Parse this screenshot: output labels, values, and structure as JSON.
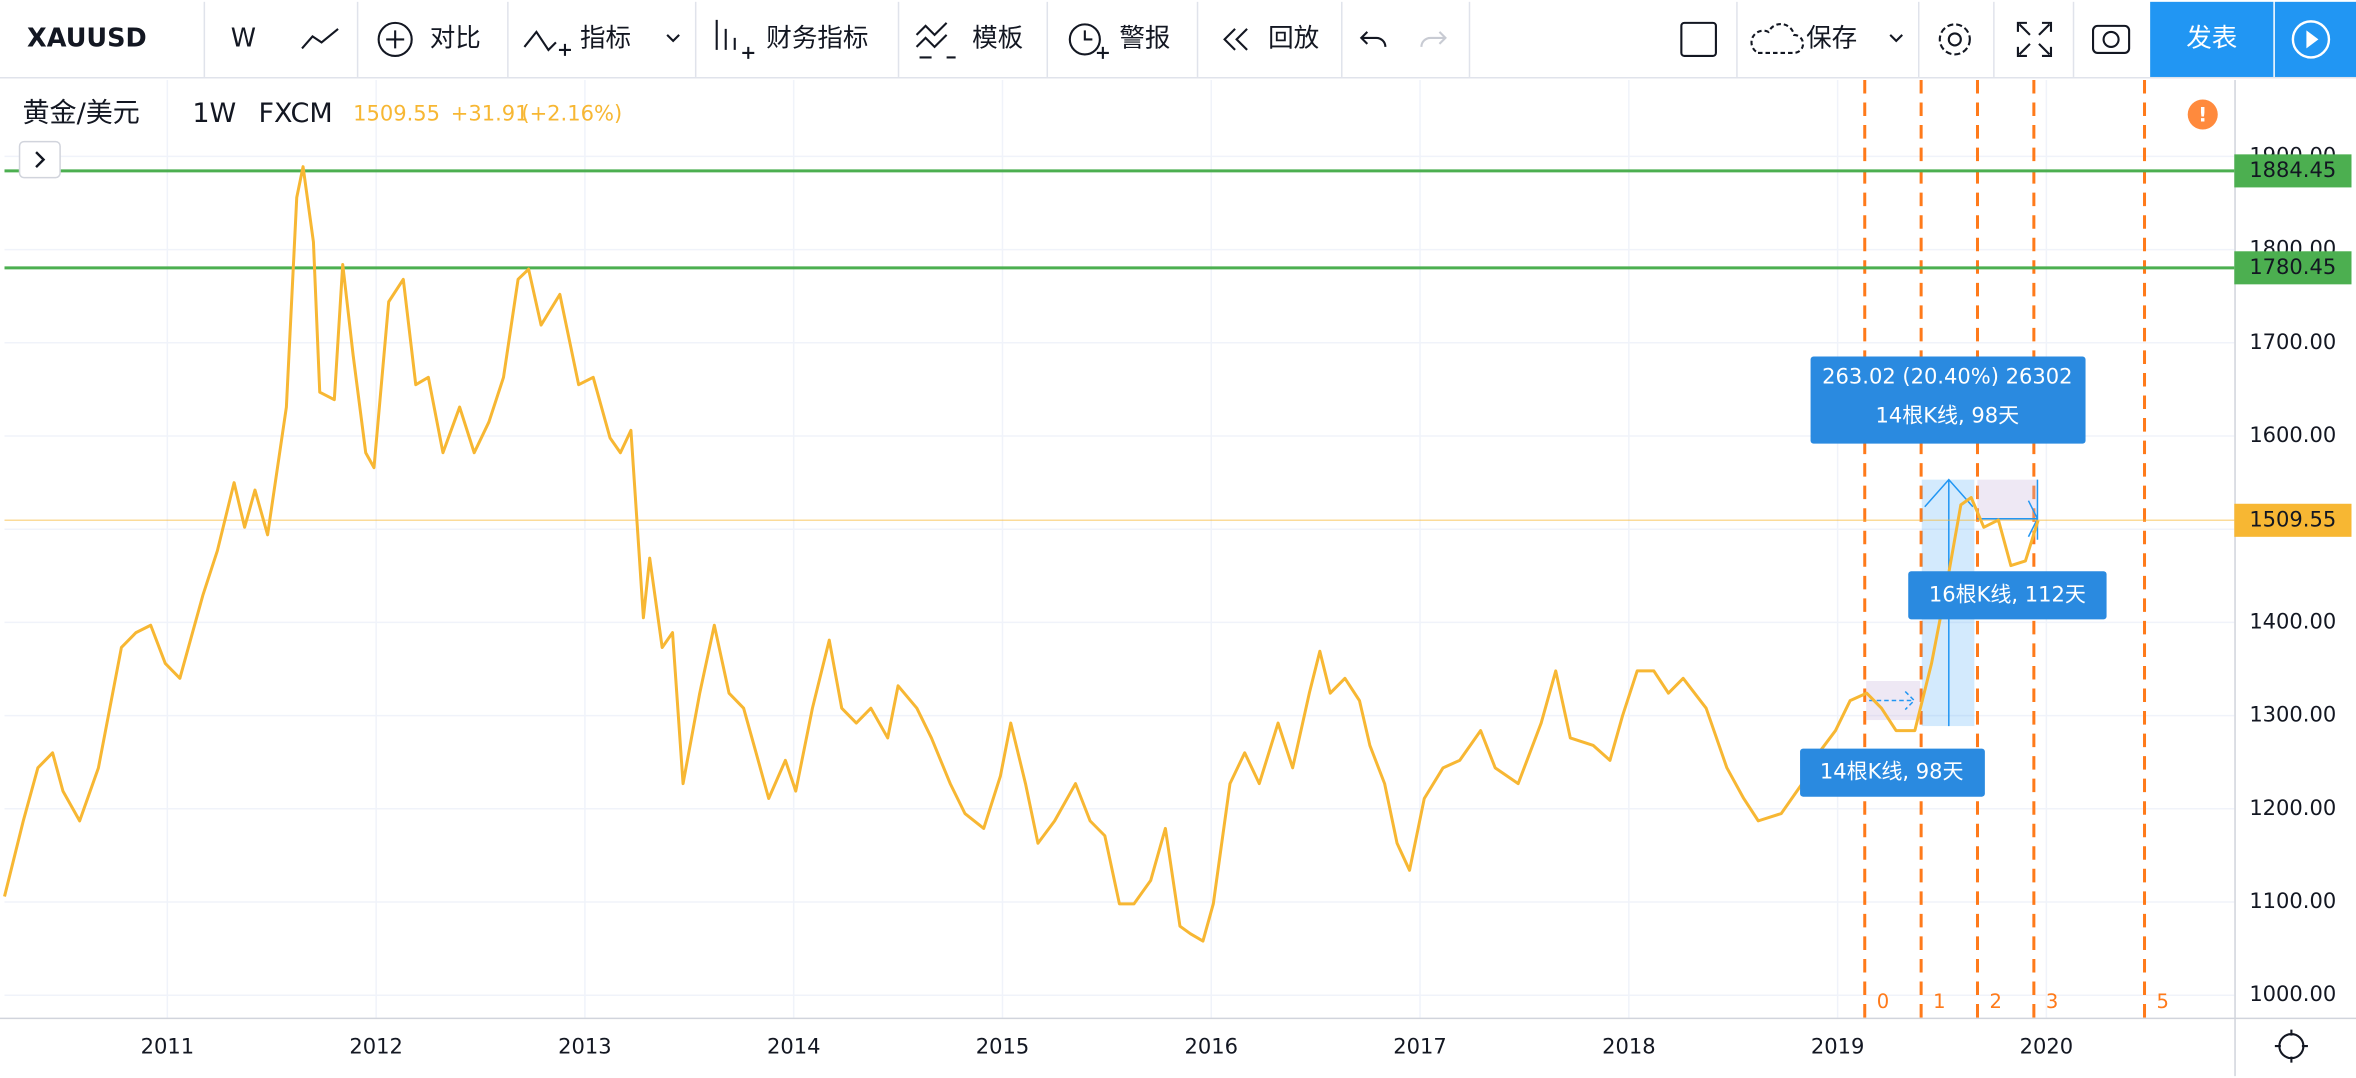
{
  "toolbar": {
    "symbol": "XAUUSD",
    "interval": "W",
    "compare": "对比",
    "indicators": "指标",
    "financials": "财务指标",
    "templates": "模板",
    "alerts": "警报",
    "replay": "回放",
    "save": "保存",
    "publish": "发表"
  },
  "legend": {
    "interval": "1W",
    "source": "FXCM",
    "price": 1509.55,
    "change": "+31.91",
    "change_pct": "(+2.16%)"
  },
  "chart_data": {
    "type": "line",
    "x": [
      2010.22,
      2010.31,
      2010.38,
      2010.45,
      2010.5,
      2010.58,
      2010.67,
      2010.78,
      2010.85,
      2010.92,
      2010.99,
      2011.06,
      2011.17,
      2011.24,
      2011.32,
      2011.37,
      2011.42,
      2011.48,
      2011.57,
      2011.62,
      2011.65,
      2011.7,
      2011.73,
      2011.8,
      2011.84,
      2011.89,
      2011.95,
      2011.99,
      2012.06,
      2012.13,
      2012.19,
      2012.25,
      2012.32,
      2012.4,
      2012.47,
      2012.54,
      2012.61,
      2012.68,
      2012.73,
      2012.79,
      2012.88,
      2012.97,
      2013.04,
      2013.12,
      2013.17,
      2013.22,
      2013.28,
      2013.31,
      2013.37,
      2013.42,
      2013.47,
      2013.55,
      2013.62,
      2013.69,
      2013.76,
      2013.82,
      2013.88,
      2013.96,
      2014.01,
      2014.09,
      2014.17,
      2014.23,
      2014.3,
      2014.37,
      2014.45,
      2014.5,
      2014.59,
      2014.66,
      2014.75,
      2014.82,
      2014.91,
      2014.99,
      2015.04,
      2015.11,
      2015.17,
      2015.25,
      2015.35,
      2015.42,
      2015.49,
      2015.56,
      2015.63,
      2015.71,
      2015.78,
      2015.85,
      2015.9,
      2015.96,
      2016.01,
      2016.09,
      2016.16,
      2016.23,
      2016.32,
      2016.39,
      2016.47,
      2016.52,
      2016.57,
      2016.64,
      2016.71,
      2016.76,
      2016.83,
      2016.89,
      2016.95,
      2017.02,
      2017.11,
      2017.19,
      2017.29,
      2017.36,
      2017.47,
      2017.58,
      2017.65,
      2017.72,
      2017.83,
      2017.91,
      2017.97,
      2018.04,
      2018.12,
      2018.19,
      2018.26,
      2018.37,
      2018.47,
      2018.55,
      2018.62,
      2018.73,
      2018.83,
      2018.91,
      2018.99,
      2019.06,
      2019.14,
      2019.21,
      2019.28,
      2019.37,
      2019.45,
      2019.52,
      2019.59,
      2019.64,
      2019.7,
      2019.77,
      2019.83,
      2019.9,
      2019.96
    ],
    "series": [
      {
        "name": "黄金/美元",
        "color": "#f7b733",
        "values": [
          1106,
          1187,
          1244,
          1260,
          1219,
          1187,
          1244,
          1373,
          1389,
          1397,
          1356,
          1340,
          1429,
          1477,
          1550,
          1502,
          1542,
          1494,
          1631,
          1856,
          1889,
          1808,
          1647,
          1639,
          1784,
          1687,
          1582,
          1566,
          1744,
          1768,
          1655,
          1663,
          1582,
          1631,
          1582,
          1615,
          1663,
          1768,
          1779,
          1719,
          1752,
          1655,
          1663,
          1598,
          1582,
          1606,
          1405,
          1469,
          1373,
          1389,
          1227,
          1324,
          1397,
          1324,
          1308,
          1260,
          1211,
          1252,
          1219,
          1308,
          1381,
          1308,
          1292,
          1308,
          1276,
          1332,
          1308,
          1276,
          1227,
          1195,
          1179,
          1235,
          1292,
          1227,
          1163,
          1187,
          1227,
          1187,
          1171,
          1098,
          1098,
          1123,
          1179,
          1074,
          1066,
          1058,
          1098,
          1227,
          1260,
          1227,
          1292,
          1244,
          1324,
          1369,
          1324,
          1340,
          1316,
          1268,
          1227,
          1163,
          1134,
          1211,
          1244,
          1252,
          1284,
          1244,
          1227,
          1292,
          1348,
          1276,
          1268,
          1252,
          1300,
          1348,
          1348,
          1324,
          1340,
          1308,
          1244,
          1211,
          1187,
          1195,
          1227,
          1260,
          1284,
          1316,
          1324,
          1308,
          1284,
          1284,
          1356,
          1437,
          1526,
          1534,
          1502,
          1510,
          1461,
          1466,
          1509.55
        ]
      }
    ],
    "xlim": [
      2010.22,
      2020.9
    ],
    "xticks": [
      2011,
      2012,
      2013,
      2014,
      2015,
      2016,
      2017,
      2018,
      2019,
      2020
    ],
    "ylim": [
      976,
      1982
    ],
    "yticks": [
      {
        "value": 1000,
        "label": "1000.00"
      },
      {
        "value": 1100,
        "label": "1100.00"
      },
      {
        "value": 1200,
        "label": "1200.00"
      },
      {
        "value": 1300,
        "label": "1300.00"
      },
      {
        "value": 1400,
        "label": "1400.00"
      },
      {
        "value": 1500,
        "label": "1500.00"
      },
      {
        "value": 1600,
        "label": "1600.00"
      },
      {
        "value": 1700,
        "label": "1700.00"
      },
      {
        "value": 1800,
        "label": "1800.00"
      },
      {
        "value": 1900,
        "label": "1900.00"
      }
    ],
    "grid": true,
    "hlines": [
      1884.45,
      1780.45
    ],
    "hline_color": "#4caf50",
    "time_zones": [
      {
        "value": 2019.13,
        "label": "0"
      },
      {
        "value": 2019.4,
        "label": "1"
      },
      {
        "value": 2019.67,
        "label": "2"
      },
      {
        "value": 2019.94,
        "label": "3"
      },
      {
        "value": 2020.47,
        "label": "5"
      }
    ],
    "time_zone_color": "#ff7a1a",
    "annotations": [
      "263.02 (20.40%) 26302",
      "14根K线, 98天",
      "16根K线, 112天",
      "14根K线, 98天"
    ]
  }
}
